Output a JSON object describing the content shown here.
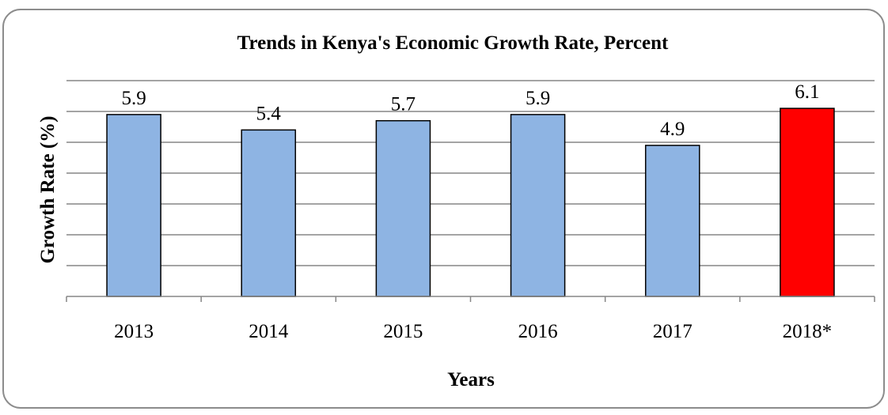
{
  "chart_data": {
    "type": "bar",
    "title": "Trends in Kenya's Economic Growth Rate, Percent",
    "xlabel": "Years",
    "ylabel": "Growth Rate (%)",
    "categories": [
      "2013",
      "2014",
      "2015",
      "2016",
      "2017",
      "2018*"
    ],
    "values": [
      5.9,
      5.4,
      5.7,
      5.9,
      4.9,
      6.1
    ],
    "value_labels": [
      "5.9",
      "5.4",
      "5.7",
      "5.9",
      "4.9",
      "6.1"
    ],
    "bar_colors": [
      "#8EB4E3",
      "#8EB4E3",
      "#8EB4E3",
      "#8EB4E3",
      "#8EB4E3",
      "#FF0000"
    ],
    "ylim": [
      0,
      7
    ],
    "gridlines": true,
    "legend": "none"
  }
}
